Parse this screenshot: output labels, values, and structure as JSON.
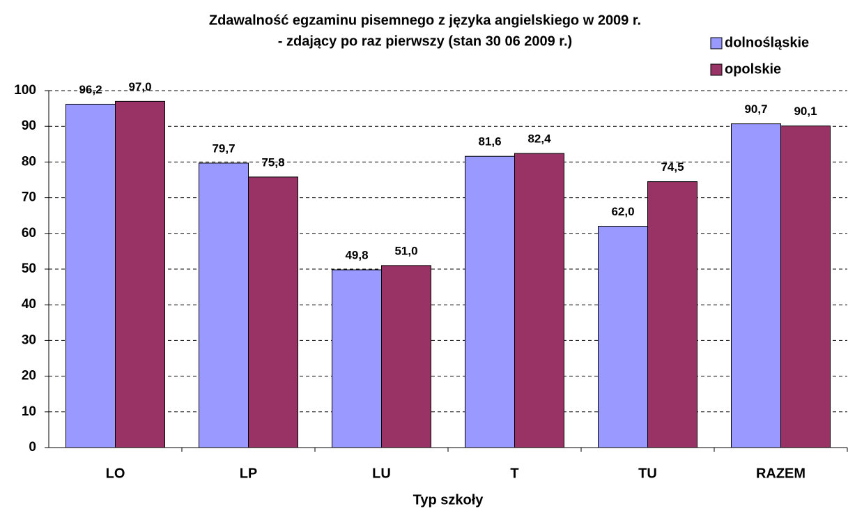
{
  "chart_data": {
    "type": "bar",
    "title": "Zdawalność egzaminu pisemnego z języka angielskiego w 2009 r.",
    "subtitle": "- zdający po raz pierwszy (stan 30 06 2009 r.)",
    "x_label": "Typ szkoły",
    "categories": [
      "LO",
      "LP",
      "LU",
      "T",
      "TU",
      "RAZEM"
    ],
    "series": [
      {
        "name": "dolnośląskie",
        "color": "#9999ff",
        "values": [
          96.2,
          79.7,
          49.8,
          81.6,
          62.0,
          90.7
        ],
        "value_labels": [
          "96,2",
          "79,7",
          "49,8",
          "81,6",
          "62,0",
          "90,7"
        ]
      },
      {
        "name": "opolskie",
        "color": "#993366",
        "values": [
          97.0,
          75.8,
          51.0,
          82.4,
          74.5,
          90.1
        ],
        "value_labels": [
          "97,0",
          "75,8",
          "51,0",
          "82,4",
          "74,5",
          "90,1"
        ]
      }
    ],
    "ylim": [
      0,
      100
    ],
    "yticks": [
      0,
      10,
      20,
      30,
      40,
      50,
      60,
      70,
      80,
      90,
      100
    ],
    "grid": true,
    "legend": "top-right"
  }
}
